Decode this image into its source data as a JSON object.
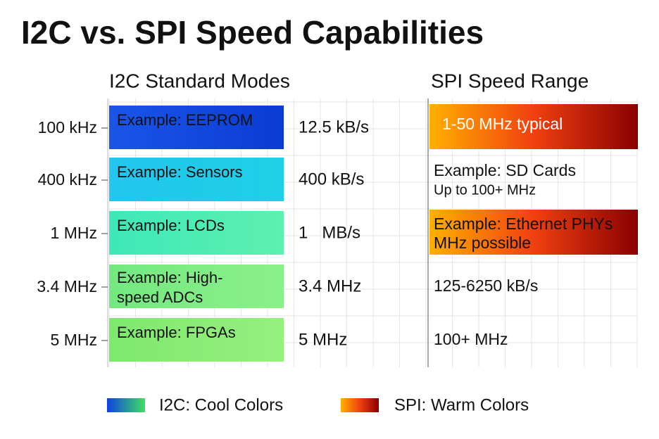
{
  "title": "I2C vs. SPI Speed Capabilities",
  "headers": {
    "i2c": "I2C Standard Modes",
    "spi": "SPI Speed Range"
  },
  "rows": [
    {
      "mode": "100 kHz",
      "example": [
        "Example: EEPROM"
      ],
      "rate": "12.5 kB/s",
      "spi": [
        "1-50 MHz typical"
      ]
    },
    {
      "mode": "400 kHz",
      "example": [
        "Example: Sensors"
      ],
      "rate": "400 kB/s",
      "spi": [
        "Example: SD Cards",
        "Up to 100+ MHz"
      ]
    },
    {
      "mode": "1 MHz",
      "example": [
        "Example: LCDs"
      ],
      "rate": "1   MB/s",
      "spi": [
        "Example: Ethernet PHYs",
        "MHz possible"
      ]
    },
    {
      "mode": "3.4 MHz",
      "example": [
        "Example: High-",
        "speed ADCs"
      ],
      "rate": "3.4 MHz",
      "spi": [
        "125-6250 kB/s"
      ]
    },
    {
      "mode": "5 MHz",
      "example": [
        "Example: FPGAs"
      ],
      "rate": "5 MHz",
      "spi": [
        "100+ MHz"
      ]
    }
  ],
  "legend": [
    {
      "label": "I2C: Cool Colors"
    },
    {
      "label": "SPI: Warm Colors"
    }
  ]
}
